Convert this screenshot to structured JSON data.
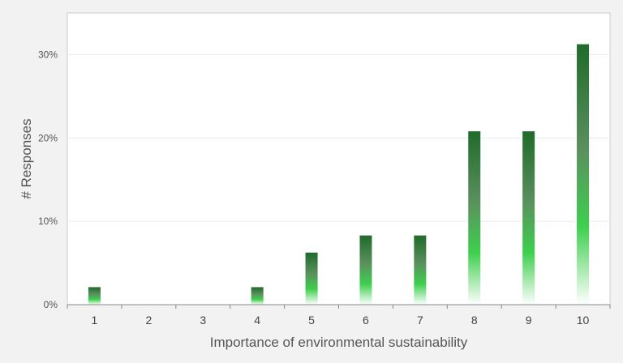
{
  "chart_data": {
    "type": "bar",
    "categories": [
      "1",
      "2",
      "3",
      "4",
      "5",
      "6",
      "7",
      "8",
      "9",
      "10"
    ],
    "values": [
      2.1,
      0,
      0,
      2.1,
      6.25,
      8.3,
      8.3,
      20.8,
      20.8,
      31.25
    ],
    "xlabel": "Importance of environmental sustainability",
    "ylabel": "# Responses",
    "yticks": [
      "0%",
      "10%",
      "20%",
      "30%"
    ],
    "ylim": [
      0,
      35
    ],
    "grid": true,
    "legend": "none",
    "colors": {
      "bar_top": "#1f6b2a",
      "bar_mid": "#5a8f5e",
      "bar_bright": "#3ecf4e",
      "bar_bottom": "#ffffff",
      "plot_background": "#ffffff",
      "page_background": "#f2f2f2"
    }
  }
}
